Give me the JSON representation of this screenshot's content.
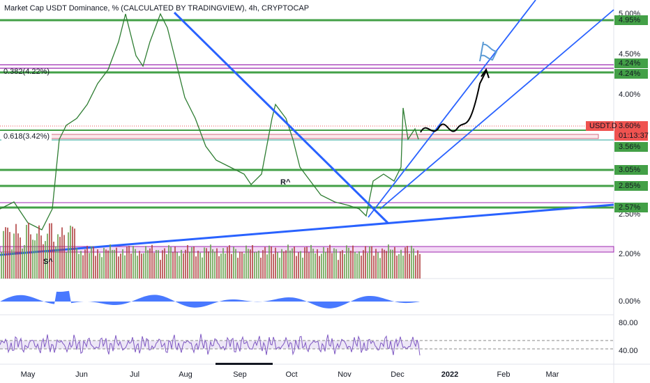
{
  "header": {
    "title": "Market Cap USDT Dominance, % (CALCULATED BY TRADINGVIEW), 4h, CRYPTOCAP"
  },
  "price_axis": [
    "5.00%",
    "4.50%",
    "4.00%",
    "2.50%",
    "2.00%"
  ],
  "badges": [
    {
      "text": "4.95%"
    },
    {
      "text": "4.24%"
    },
    {
      "text": "4.24%"
    },
    {
      "text": "3.60%"
    },
    {
      "text": "01:13:37"
    },
    {
      "text": "3.56%"
    },
    {
      "text": "3.05%"
    },
    {
      "text": "2.85%"
    },
    {
      "text": "2.57%"
    }
  ],
  "symbol_badge": "USDT.D",
  "fib_labels": [
    "0.382(4.22%)",
    "0.618(3.42%)"
  ],
  "annotations": [
    "R^",
    "S^"
  ],
  "indicator_axis": [
    "0.00%",
    "80.00",
    "40.00"
  ],
  "time_axis": [
    "May",
    "Jun",
    "Jul",
    "Aug",
    "Sep",
    "Oct",
    "Nov",
    "Dec",
    "2022",
    "Feb",
    "Mar"
  ]
}
